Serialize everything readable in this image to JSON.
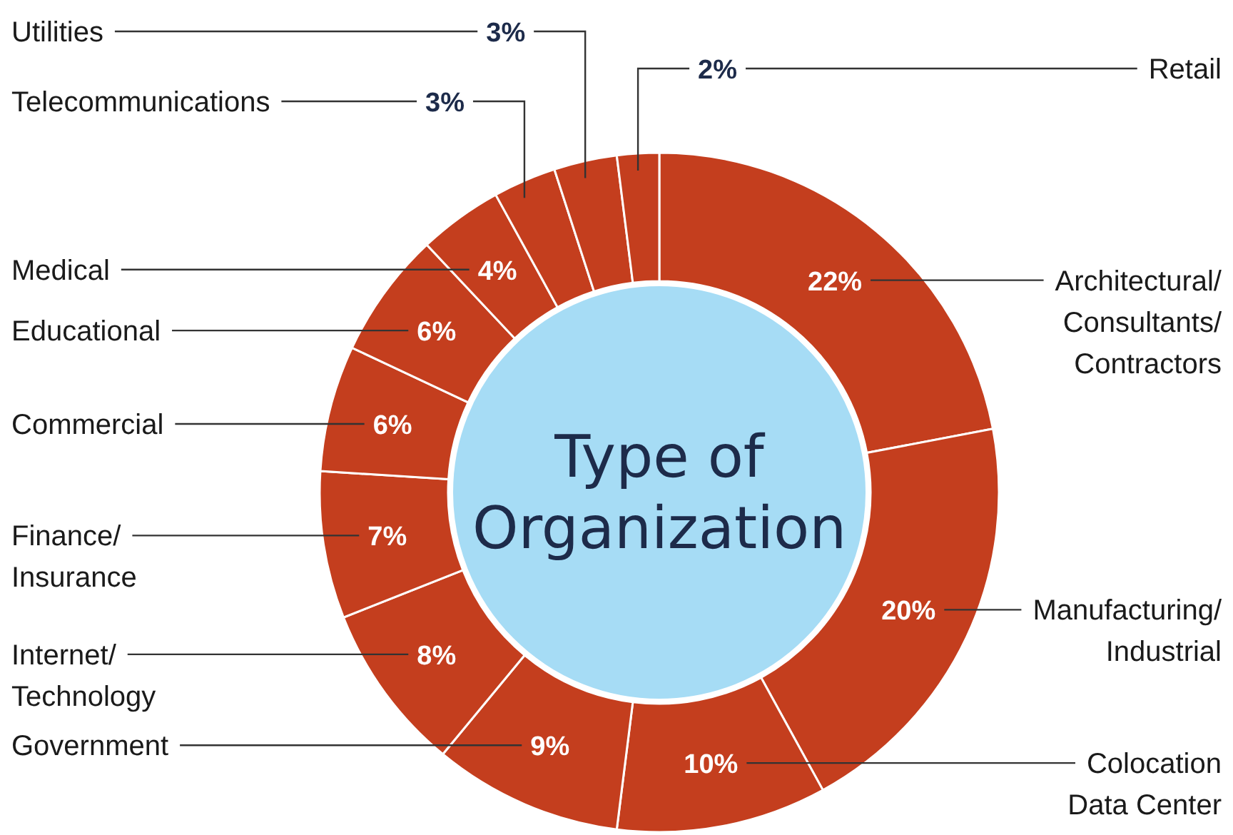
{
  "chart_data": {
    "type": "donut",
    "title": "Type of Organization",
    "categories": [
      "Architectural/\nConsultants/\nContractors",
      "Manufacturing/\nIndustrial",
      "Colocation\nData Center",
      "Government",
      "Internet/\nTechnology",
      "Finance/\nInsurance",
      "Commercial",
      "Educational",
      "Medical",
      "Telecommunications",
      "Utilities",
      "Retail"
    ],
    "values": [
      22,
      20,
      10,
      9,
      8,
      7,
      6,
      6,
      4,
      3,
      3,
      2
    ],
    "value_labels": [
      "22%",
      "20%",
      "10%",
      "9%",
      "8%",
      "7%",
      "6%",
      "6%",
      "4%",
      "3%",
      "3%",
      "2%"
    ],
    "colors": [
      "#c43e1e",
      "#c43e1e",
      "#c43e1e",
      "#c43e1e",
      "#c43e1e",
      "#c43e1e",
      "#c43e1e",
      "#c43e1e",
      "#c43e1e",
      "#c43e1e",
      "#c43e1e",
      "#c43e1e"
    ]
  }
}
